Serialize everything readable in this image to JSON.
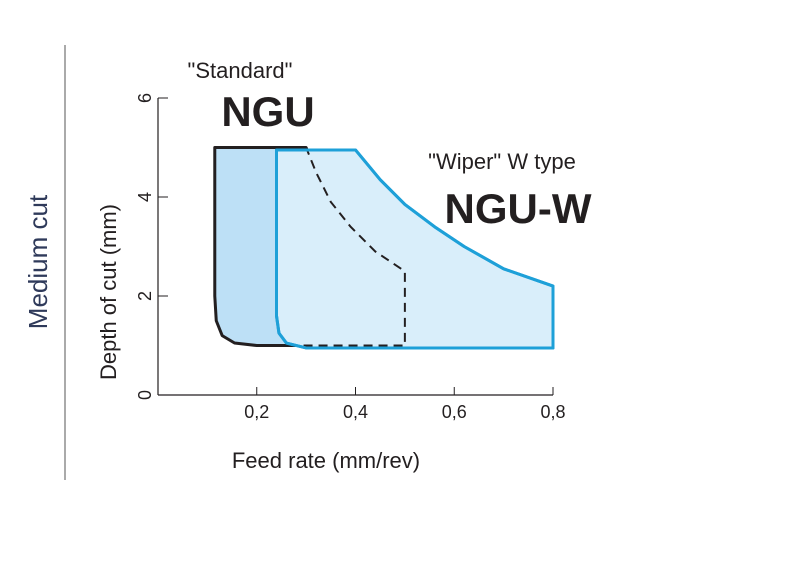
{
  "chart_data": {
    "type": "area",
    "side_label": "Medium cut",
    "x_label": "Feed rate (mm/rev)",
    "y_label": "Depth of cut (mm)",
    "xlim": [
      0,
      0.8
    ],
    "ylim": [
      0,
      6
    ],
    "xticks": [
      {
        "value": 0.2,
        "label": "0,2"
      },
      {
        "value": 0.4,
        "label": "0,4"
      },
      {
        "value": 0.6,
        "label": "0,6"
      },
      {
        "value": 0.8,
        "label": "0,8"
      }
    ],
    "yticks": [
      0,
      2,
      4,
      6
    ],
    "overlap_edge": "dashed",
    "series": [
      {
        "name": "NGU",
        "label": "\"Standard\"",
        "color": "#bde0f6",
        "edge_color": "#231f20",
        "x": [
          0.115,
          0.3,
          0.32,
          0.35,
          0.39,
          0.44,
          0.5,
          0.5,
          0.2,
          0.155,
          0.13,
          0.118,
          0.115
        ],
        "y": [
          5,
          5,
          4.5,
          3.9,
          3.4,
          2.9,
          2.5,
          1,
          1,
          1.05,
          1.2,
          1.5,
          2
        ]
      },
      {
        "name": "NGU-W",
        "label": "\"Wiper\" W  type",
        "color": "#d9eefa",
        "edge_color": "#1ea0d8",
        "x": [
          0.24,
          0.4,
          0.45,
          0.5,
          0.56,
          0.62,
          0.7,
          0.8,
          0.8,
          0.3,
          0.26,
          0.245,
          0.24
        ],
        "y": [
          4.95,
          4.95,
          4.35,
          3.85,
          3.4,
          3.0,
          2.55,
          2.2,
          0.95,
          0.95,
          1.05,
          1.25,
          1.6
        ]
      }
    ]
  }
}
